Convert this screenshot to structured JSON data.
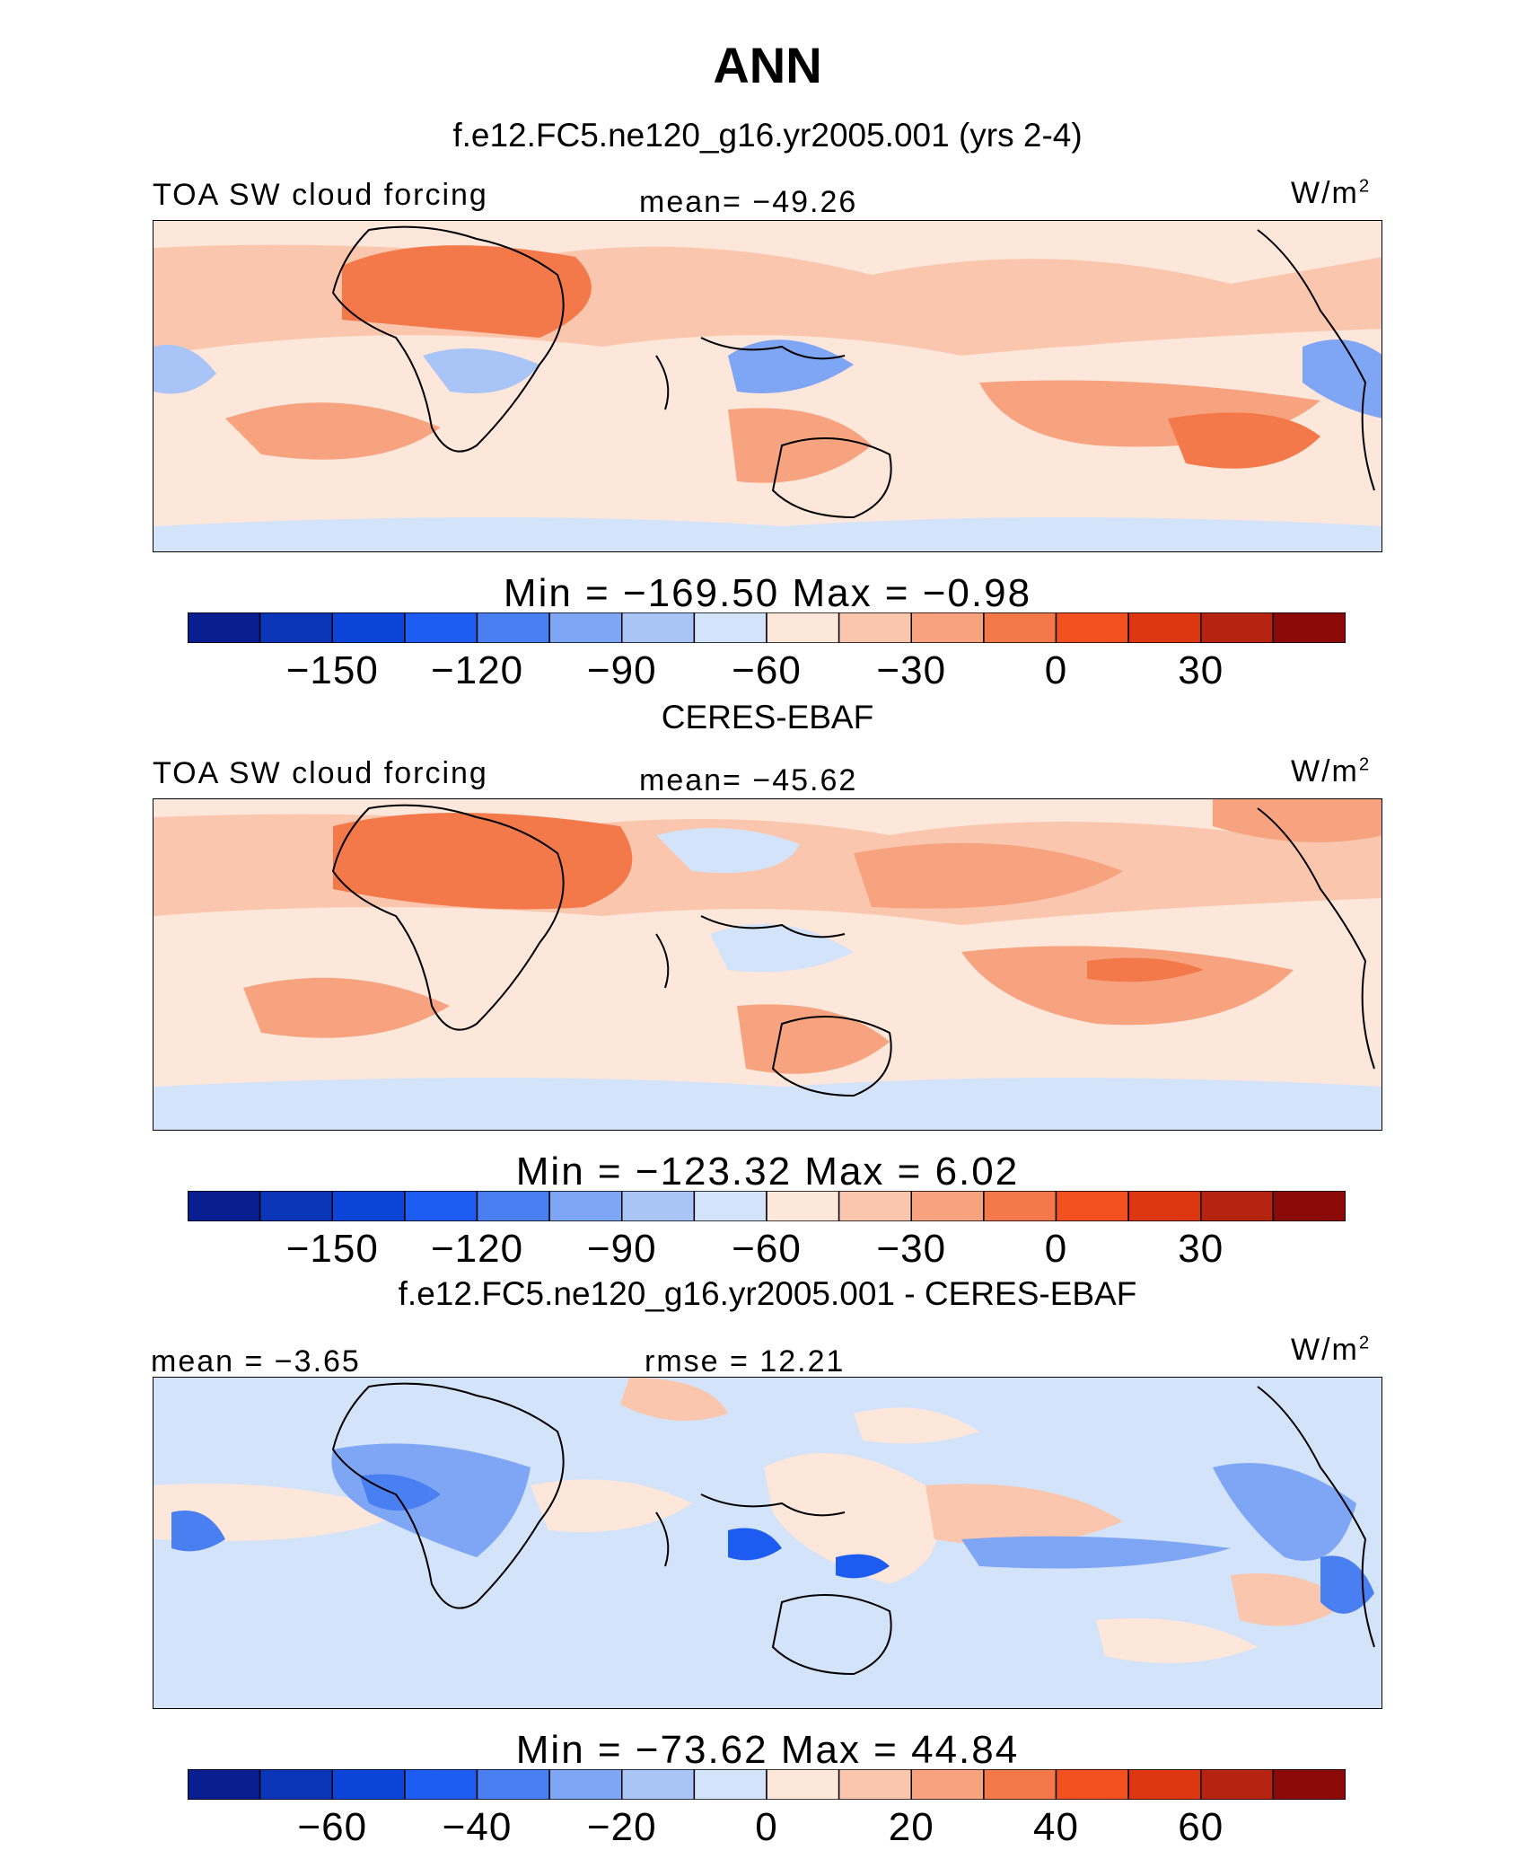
{
  "page": {
    "title": "ANN",
    "run_subtitle": "f.e12.FC5.ne120_g16.yr2005.001 (yrs 2-4)",
    "obs_subtitle": "CERES-EBAF",
    "diff_subtitle": "f.e12.FC5.ne120_g16.yr2005.001 - CERES-EBAF"
  },
  "chart_data": [
    {
      "type": "heatmap",
      "panel": "model",
      "left_label": "TOA SW cloud forcing",
      "center_label": "mean= −49.26",
      "units_base": "W/m",
      "units_exp": "2",
      "minmax_label": "Min  =  −169.50  Max  =    −0.98",
      "colorbar": {
        "levels": [
          -165,
          -150,
          -135,
          -120,
          -105,
          -90,
          -75,
          -60,
          -45,
          -30,
          -15,
          0,
          15,
          30,
          45
        ],
        "tick_labels": [
          "−150",
          "−120",
          "−90",
          "−60",
          "−30",
          "0",
          "30"
        ],
        "colors": [
          "#0a1f8f",
          "#0c36b8",
          "#0b44d6",
          "#1c5cf0",
          "#4a7ff2",
          "#7fa6f5",
          "#a9c4f7",
          "#d3e3fa",
          "#fde6da",
          "#fbc6ae",
          "#f7a37f",
          "#f3794b",
          "#f2511f",
          "#dc3711",
          "#b42410",
          "#8c0a0a"
        ]
      }
    },
    {
      "type": "heatmap",
      "panel": "observations",
      "left_label": "TOA SW cloud forcing",
      "center_label": "mean= −45.62",
      "units_base": "W/m",
      "units_exp": "2",
      "minmax_label": "Min  =  −123.32  Max  =     6.02",
      "colorbar": {
        "levels": [
          -165,
          -150,
          -135,
          -120,
          -105,
          -90,
          -75,
          -60,
          -45,
          -30,
          -15,
          0,
          15,
          30,
          45
        ],
        "tick_labels": [
          "−150",
          "−120",
          "−90",
          "−60",
          "−30",
          "0",
          "30"
        ],
        "colors": [
          "#0a1f8f",
          "#0c36b8",
          "#0b44d6",
          "#1c5cf0",
          "#4a7ff2",
          "#7fa6f5",
          "#a9c4f7",
          "#d3e3fa",
          "#fde6da",
          "#fbc6ae",
          "#f7a37f",
          "#f3794b",
          "#f2511f",
          "#dc3711",
          "#b42410",
          "#8c0a0a"
        ]
      }
    },
    {
      "type": "heatmap",
      "panel": "difference",
      "left_label": "mean  =   −3.65",
      "center_label": "rmse  =   12.21",
      "units_base": "W/m",
      "units_exp": "2",
      "minmax_label": "Min  =  −73.62  Max  =   44.84",
      "colorbar": {
        "levels": [
          -70,
          -60,
          -50,
          -40,
          -30,
          -20,
          -10,
          0,
          10,
          20,
          30,
          40,
          50,
          60,
          70
        ],
        "tick_labels": [
          "−60",
          "−40",
          "−20",
          "0",
          "20",
          "40",
          "60"
        ],
        "colors": [
          "#0a1f8f",
          "#0c36b8",
          "#0b44d6",
          "#1c5cf0",
          "#4a7ff2",
          "#7fa6f5",
          "#a9c4f7",
          "#d3e3fa",
          "#fde6da",
          "#fbc6ae",
          "#f7a37f",
          "#f3794b",
          "#f2511f",
          "#dc3711",
          "#b42410",
          "#8c0a0a"
        ]
      }
    }
  ]
}
